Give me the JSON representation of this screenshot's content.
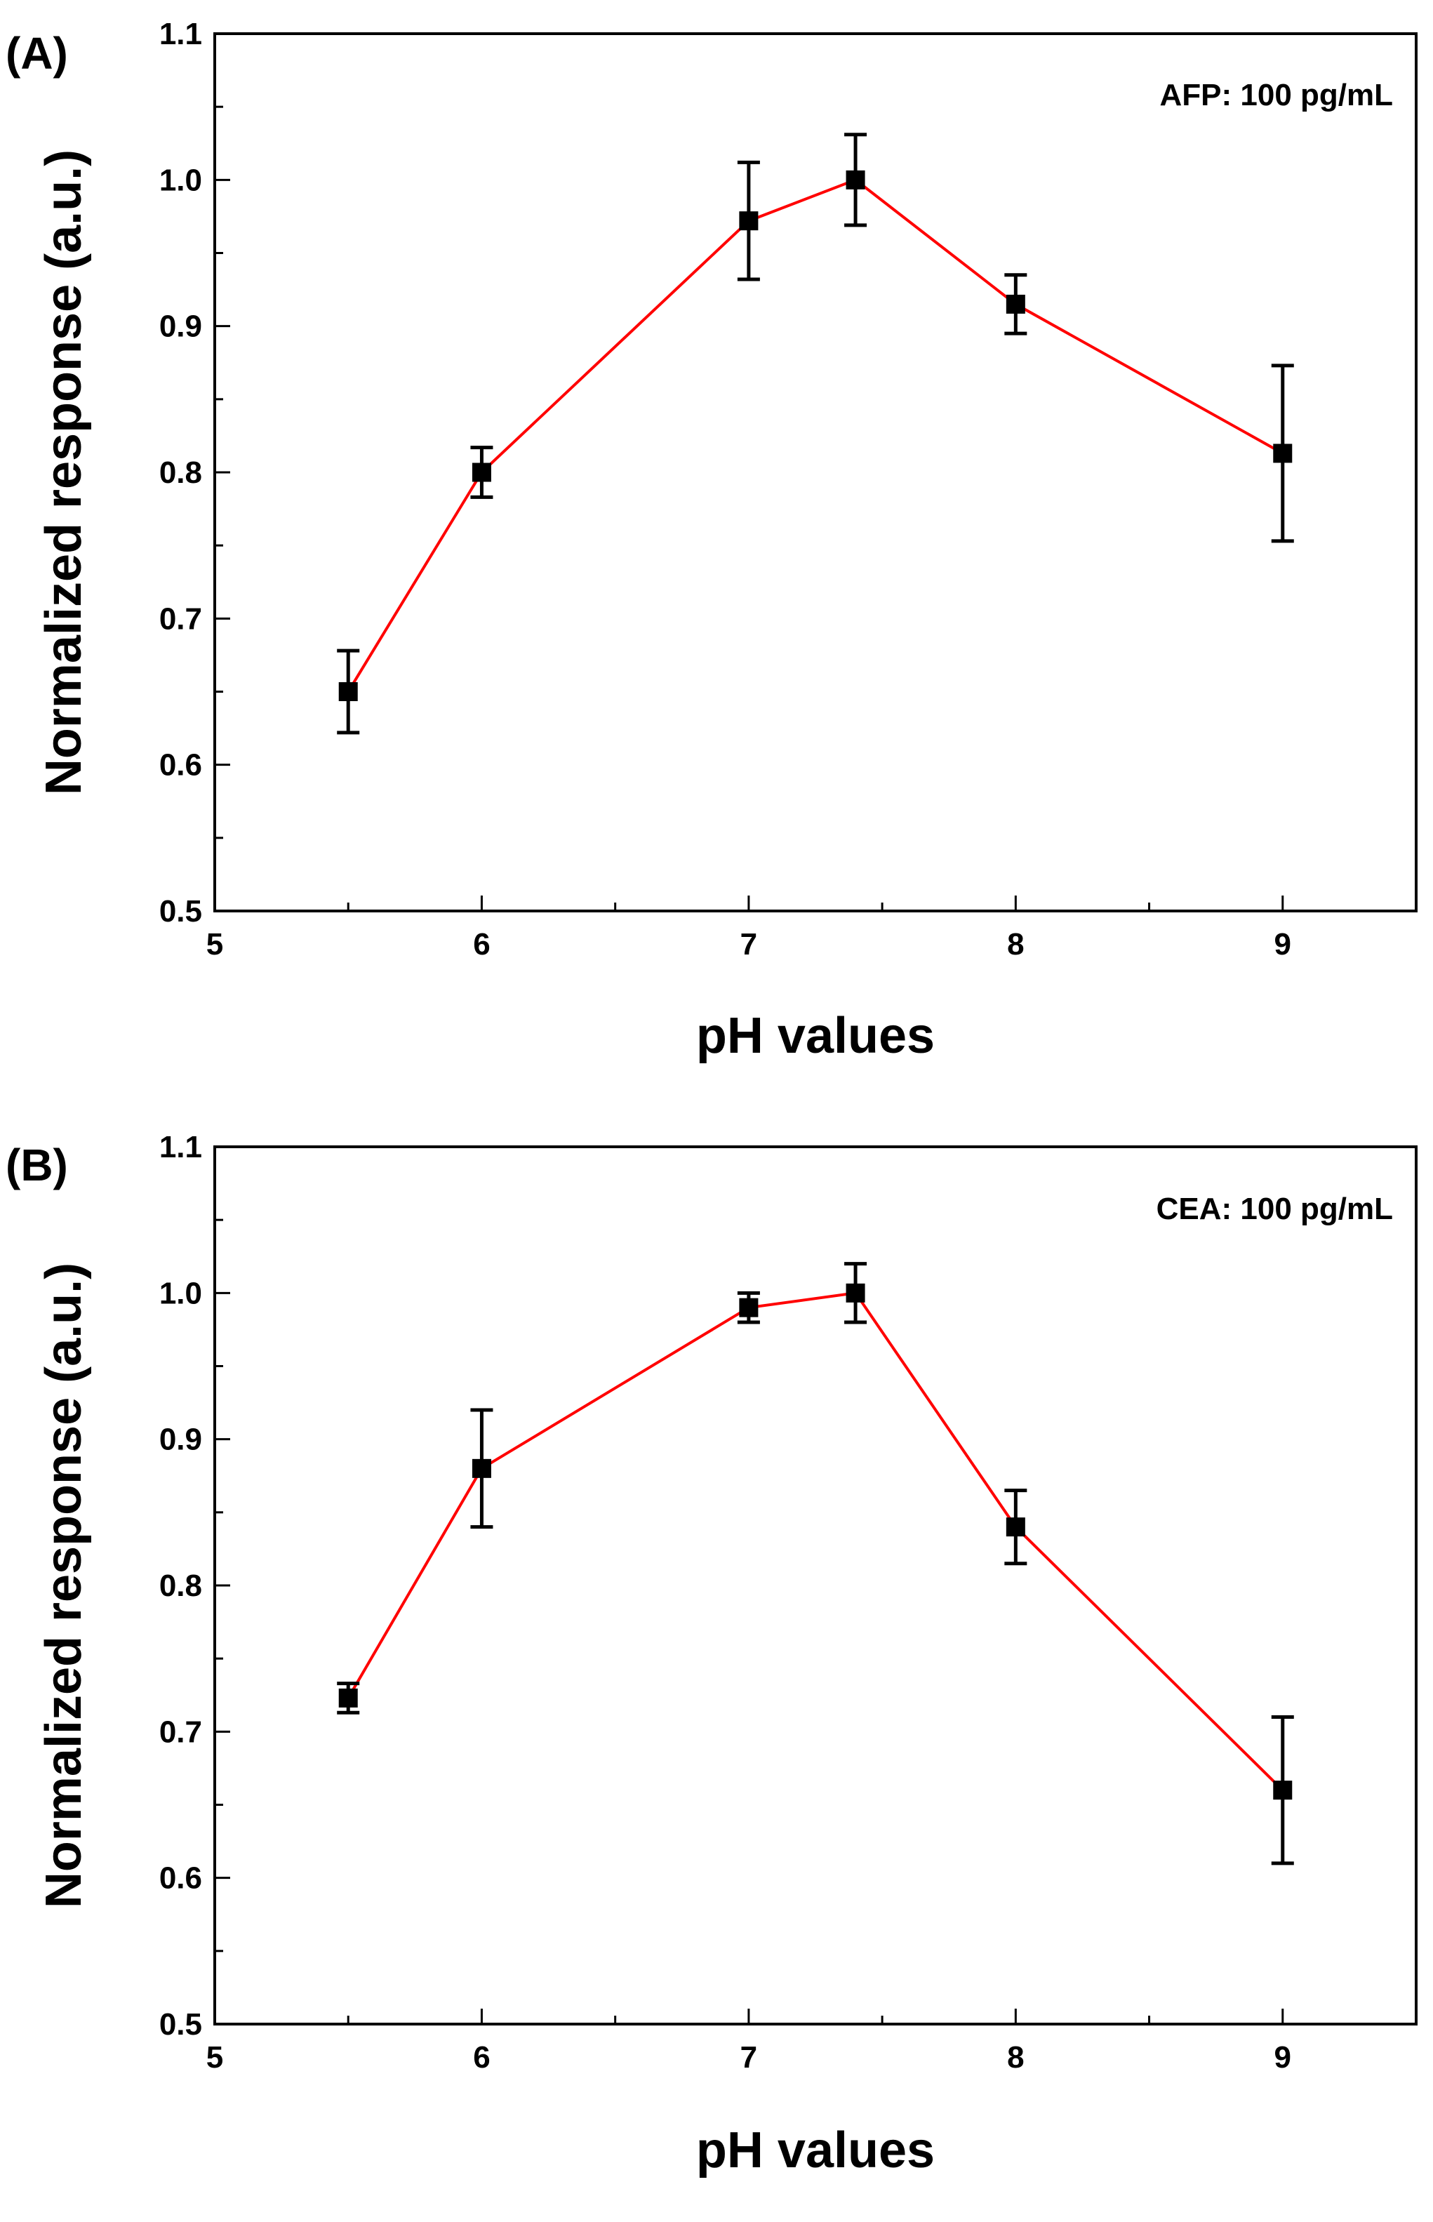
{
  "figure": {
    "panels_count": 2
  },
  "chart_data": [
    {
      "type": "line",
      "panel_label": "(A)",
      "annotation": "AFP: 100 pg/mL",
      "xlabel": "pH values",
      "ylabel": "Normalized response (a.u.)",
      "xlim": [
        5,
        9.5
      ],
      "ylim": [
        0.5,
        1.1
      ],
      "xticks": [
        5,
        6,
        7,
        8,
        9
      ],
      "xtick_labels": [
        "5",
        "6",
        "7",
        "8",
        "9"
      ],
      "yticks": [
        0.5,
        0.6,
        0.7,
        0.8,
        0.9,
        1.0,
        1.1
      ],
      "ytick_labels": [
        "0.5",
        "0.6",
        "0.7",
        "0.8",
        "0.9",
        "1.0",
        "1.1"
      ],
      "grid": false,
      "series": [
        {
          "name": "AFP",
          "line_color": "#ff0000",
          "marker_color": "#000000",
          "marker": "square",
          "x": [
            5.5,
            6,
            7,
            7.4,
            8,
            9
          ],
          "y": [
            0.65,
            0.8,
            0.972,
            1.0,
            0.915,
            0.813
          ],
          "yerr": [
            0.028,
            0.017,
            0.04,
            0.031,
            0.02,
            0.06
          ]
        }
      ]
    },
    {
      "type": "line",
      "panel_label": "(B)",
      "annotation": "CEA: 100 pg/mL",
      "xlabel": "pH values",
      "ylabel": "Normalized response (a.u.)",
      "xlim": [
        5,
        9.5
      ],
      "ylim": [
        0.5,
        1.1
      ],
      "xticks": [
        5,
        6,
        7,
        8,
        9
      ],
      "xtick_labels": [
        "5",
        "6",
        "7",
        "8",
        "9"
      ],
      "yticks": [
        0.5,
        0.6,
        0.7,
        0.8,
        0.9,
        1.0,
        1.1
      ],
      "ytick_labels": [
        "0.5",
        "0.6",
        "0.7",
        "0.8",
        "0.9",
        "1.0",
        "1.1"
      ],
      "grid": false,
      "series": [
        {
          "name": "CEA",
          "line_color": "#ff0000",
          "marker_color": "#000000",
          "marker": "square",
          "x": [
            5.5,
            6,
            7,
            7.4,
            8,
            9
          ],
          "y": [
            0.723,
            0.88,
            0.99,
            1.0,
            0.84,
            0.66
          ],
          "yerr": [
            0.01,
            0.04,
            0.01,
            0.02,
            0.025,
            0.05
          ]
        }
      ]
    }
  ]
}
